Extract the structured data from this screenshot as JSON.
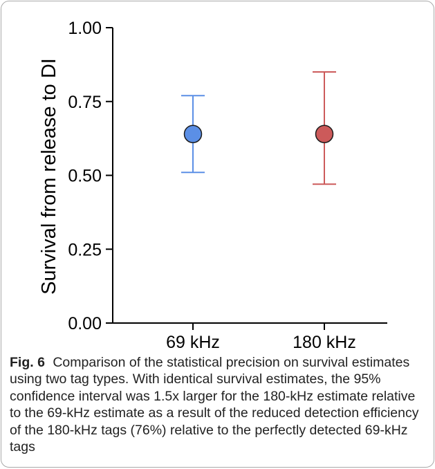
{
  "chart_data": {
    "type": "scatter",
    "ylabel": "Survival from release to DI",
    "xlabel": "",
    "ylim": [
      0,
      1
    ],
    "yticks": [
      "0.00",
      "0.25",
      "0.50",
      "0.75",
      "1.00"
    ],
    "categories": [
      "69 kHz",
      "180 kHz"
    ],
    "points": [
      {
        "category": "69 kHz",
        "estimate": 0.64,
        "lower": 0.51,
        "upper": 0.77,
        "color": "#5b8fe6",
        "edge": "#1a1a1a"
      },
      {
        "category": "180 kHz",
        "estimate": 0.64,
        "lower": 0.47,
        "upper": 0.85,
        "color": "#cc5a5a",
        "edge": "#1a1a1a"
      }
    ],
    "grid": false
  },
  "caption": {
    "label": "Fig. 6",
    "text": "Comparison of the statistical precision on survival estimates using two tag types. With identical survival estimates, the 95% confidence interval was 1.5x larger for the 180-kHz estimate relative to the 69-kHz estimate as a result of the reduced detection efficiency of the 180-kHz tags (76%) relative to the perfectly detected 69-kHz tags"
  },
  "colors": {
    "axis": "#000000",
    "error_69": "#5b8fe6",
    "error_180": "#cc5a5a"
  }
}
